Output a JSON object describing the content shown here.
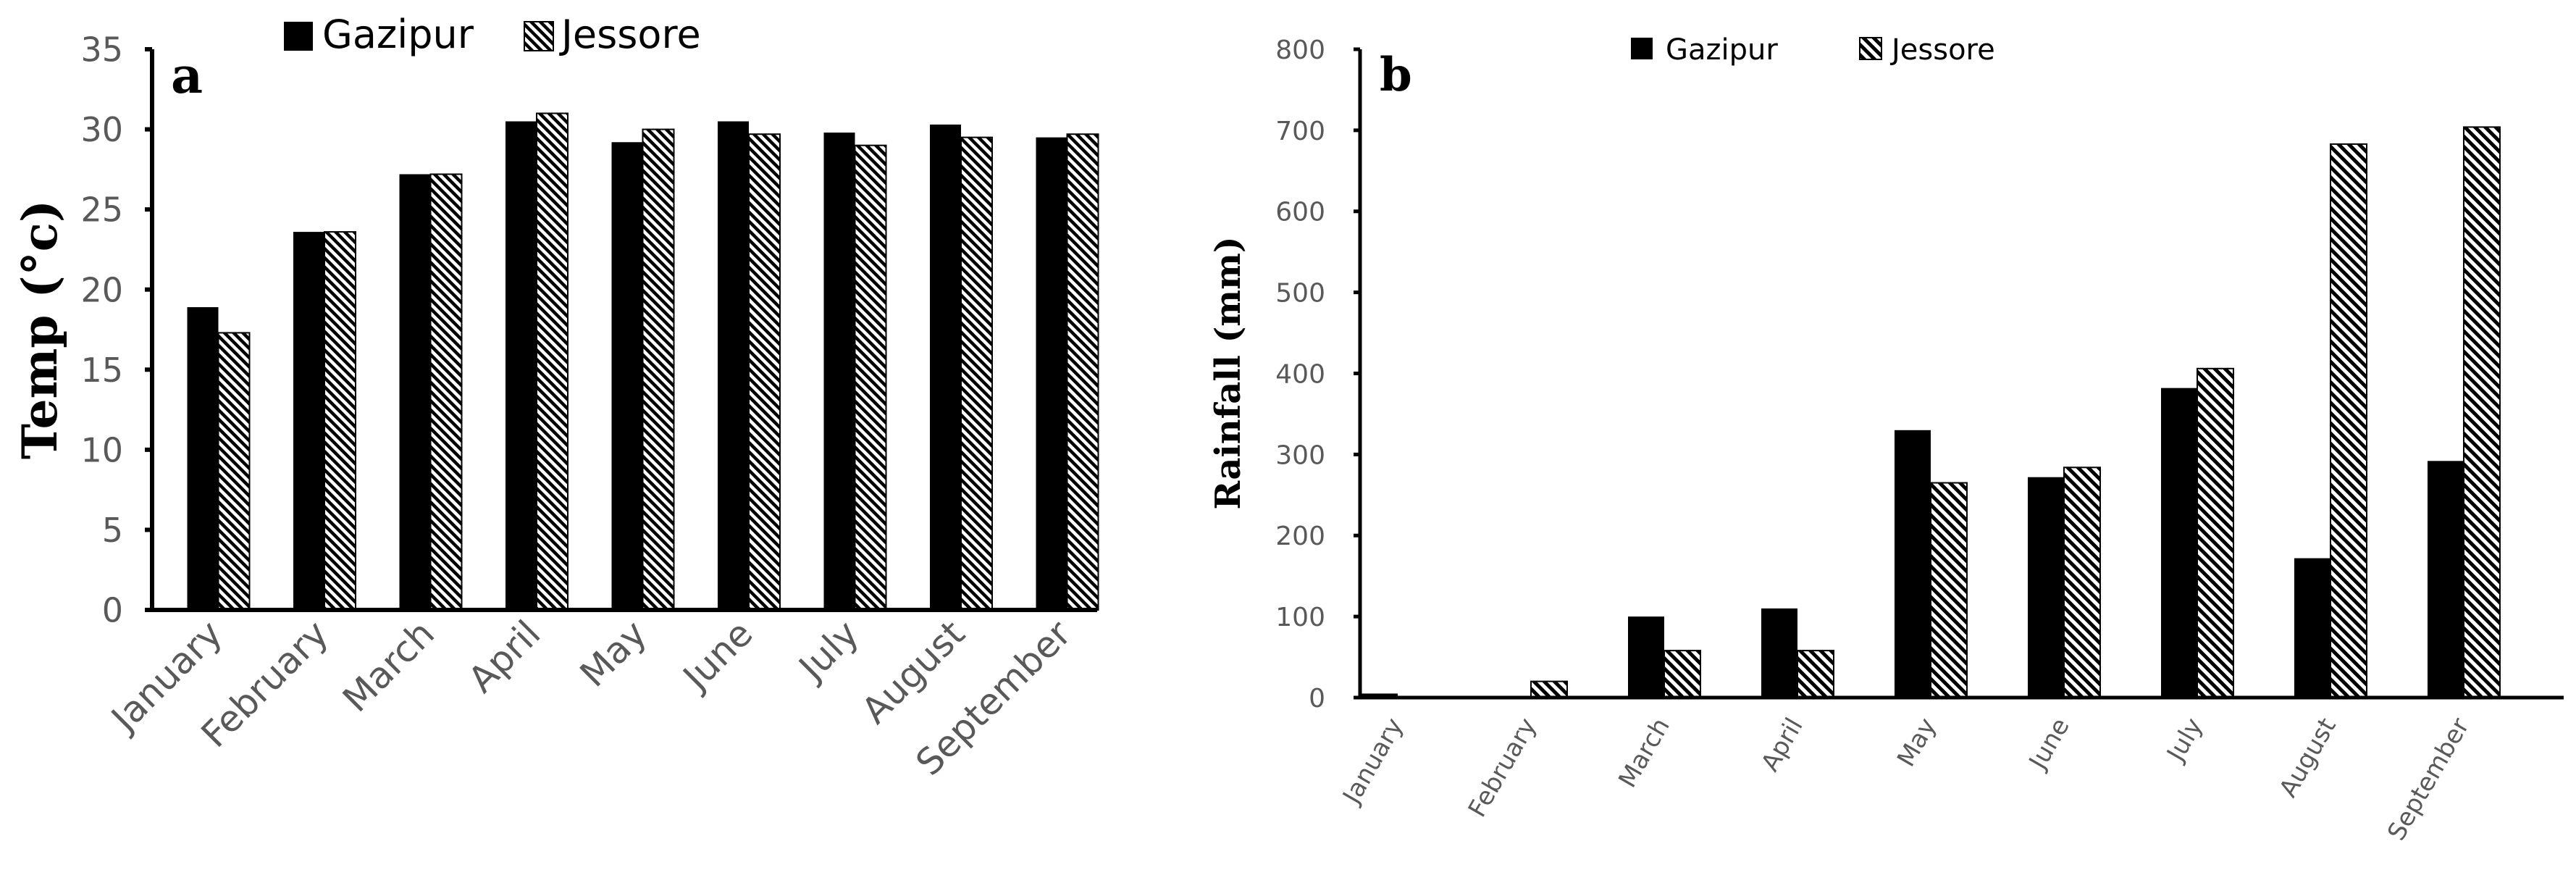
{
  "chart_data": [
    {
      "type": "bar",
      "panel_label": "a",
      "categories": [
        "January",
        "February",
        "March",
        "April",
        "May",
        "June",
        "July",
        "August",
        "September"
      ],
      "series": [
        {
          "name": "Gazipur",
          "fill": "solid",
          "color": "#000000",
          "values": [
            18.9,
            23.6,
            27.2,
            30.5,
            29.2,
            30.5,
            29.8,
            30.3,
            29.5
          ]
        },
        {
          "name": "Jessore",
          "fill": "hatched",
          "color": "#000000",
          "values": [
            17.3,
            23.6,
            27.2,
            31.0,
            30.0,
            29.7,
            29.0,
            29.5,
            29.7
          ]
        }
      ],
      "title": "",
      "xlabel": "",
      "ylabel": "Temp (°c)",
      "ylim": [
        0,
        35
      ],
      "yticks": [
        0,
        5,
        10,
        15,
        20,
        25,
        30,
        35
      ],
      "grid": false,
      "legend_position": "top"
    },
    {
      "type": "bar",
      "panel_label": "b",
      "categories": [
        "January",
        "February",
        "March",
        "April",
        "May",
        "June",
        "July",
        "August",
        "September"
      ],
      "series": [
        {
          "name": "Gazipur",
          "fill": "solid",
          "color": "#000000",
          "values": [
            5,
            0,
            100,
            110,
            330,
            272,
            382,
            172,
            292
          ]
        },
        {
          "name": "Jessore",
          "fill": "hatched",
          "color": "#000000",
          "values": [
            0,
            20,
            58,
            58,
            265,
            284,
            406,
            683,
            704
          ]
        }
      ],
      "title": "",
      "xlabel": "",
      "ylabel": "Rainfall (mm)",
      "ylim": [
        0,
        800
      ],
      "yticks": [
        0,
        100,
        200,
        300,
        400,
        500,
        600,
        700,
        800
      ],
      "grid": false,
      "legend_position": "top"
    }
  ]
}
